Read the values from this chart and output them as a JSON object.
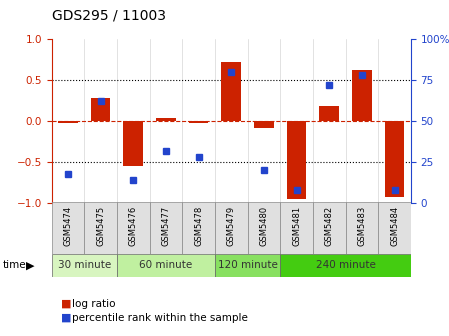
{
  "title": "GDS295 / 11003",
  "samples": [
    "GSM5474",
    "GSM5475",
    "GSM5476",
    "GSM5477",
    "GSM5478",
    "GSM5479",
    "GSM5480",
    "GSM5481",
    "GSM5482",
    "GSM5483",
    "GSM5484"
  ],
  "log_ratio": [
    -0.02,
    0.28,
    -0.55,
    0.04,
    -0.02,
    0.72,
    -0.08,
    -0.95,
    0.18,
    0.62,
    -0.92
  ],
  "percentile_rank": [
    18,
    62,
    14,
    32,
    28,
    80,
    20,
    8,
    72,
    78,
    8
  ],
  "groups": [
    {
      "label": "30 minute",
      "start": 0,
      "end": 1,
      "color": "#d8f5c0"
    },
    {
      "label": "60 minute",
      "start": 2,
      "end": 4,
      "color": "#c0f0a0"
    },
    {
      "label": "120 minute",
      "start": 5,
      "end": 6,
      "color": "#88e060"
    },
    {
      "label": "240 minute",
      "start": 7,
      "end": 10,
      "color": "#44cc11"
    }
  ],
  "bar_color": "#cc2200",
  "dot_color": "#2244cc",
  "bar_width": 0.6,
  "ylim_left": [
    -1,
    1
  ],
  "ylim_right": [
    0,
    100
  ],
  "yticks_left": [
    -1,
    -0.5,
    0,
    0.5,
    1
  ],
  "yticks_right": [
    0,
    25,
    50,
    75,
    100
  ],
  "bg_color": "#ffffff"
}
